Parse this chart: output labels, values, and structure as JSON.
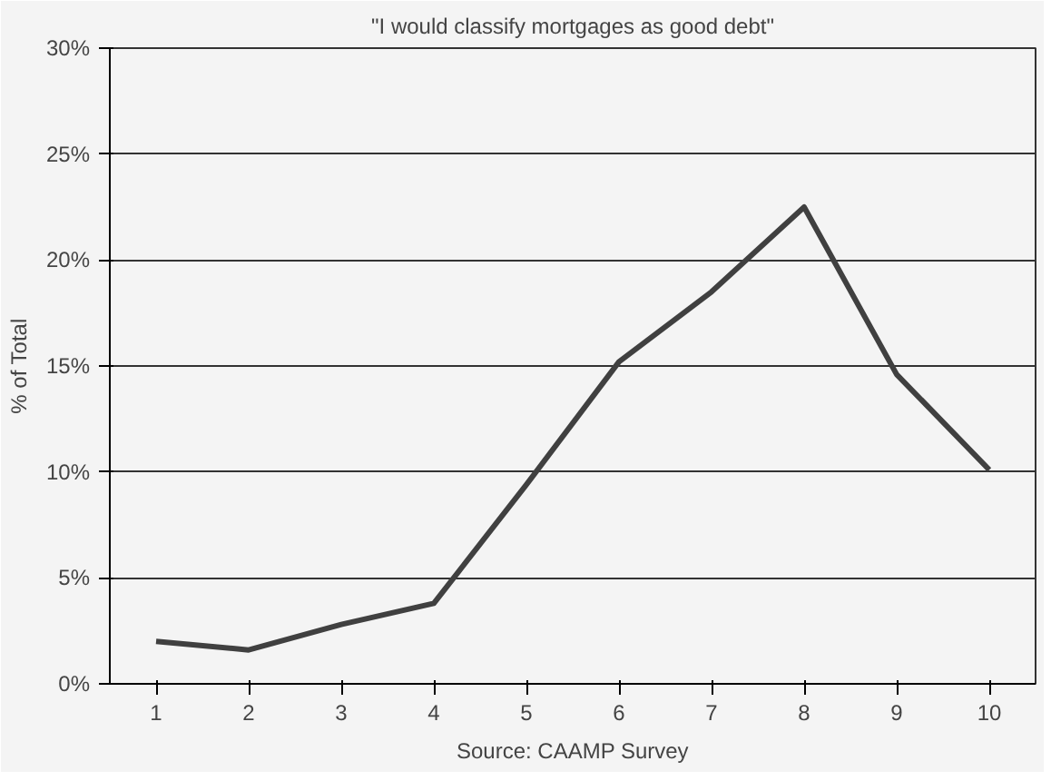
{
  "chart_data": {
    "type": "line",
    "title": "\"I would classify mortgages as good debt\"",
    "ylabel": "% of Total",
    "categories": [
      "1",
      "2",
      "3",
      "4",
      "5",
      "6",
      "7",
      "8",
      "9",
      "10"
    ],
    "series": [
      {
        "color": "#404040",
        "values": [
          2.0,
          1.6,
          2.8,
          3.8,
          9.4,
          15.2,
          18.5,
          22.5,
          14.6,
          10.1
        ]
      }
    ],
    "ylim": [
      0,
      30
    ],
    "yticks": [
      {
        "value": 0,
        "label": "0%"
      },
      {
        "value": 5,
        "label": "5%"
      },
      {
        "value": 10,
        "label": "10%"
      },
      {
        "value": 15,
        "label": "15%"
      },
      {
        "value": 20,
        "label": "20%"
      },
      {
        "value": 25,
        "label": "25%"
      },
      {
        "value": 30,
        "label": "30%"
      }
    ],
    "grid": "y",
    "marker": "none",
    "line_style": "solid",
    "annotations": [
      "Source: CAAMP Survey"
    ]
  }
}
